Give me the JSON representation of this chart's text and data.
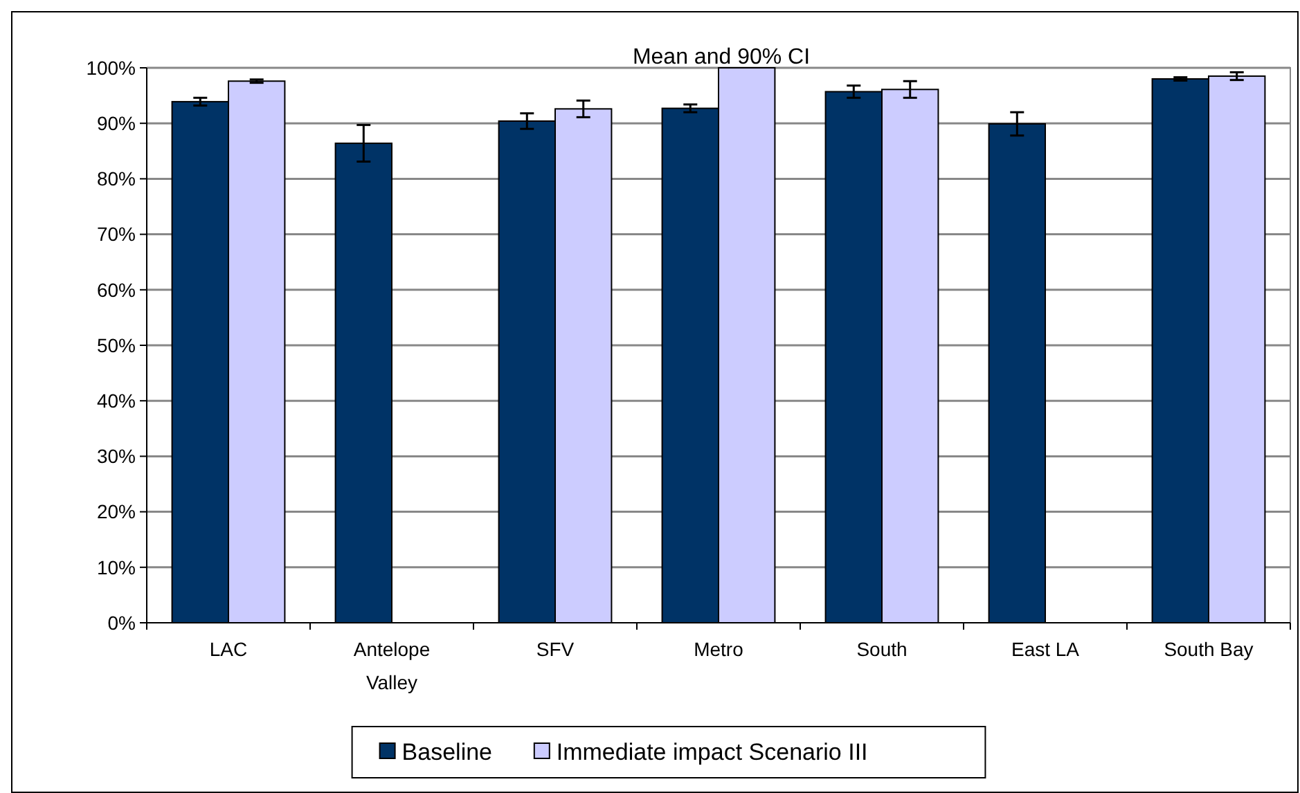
{
  "chart_data": {
    "type": "bar",
    "title": "Mean and 90% CI",
    "categories": [
      "LAC",
      "Antelope Valley",
      "SFV",
      "Metro",
      "South",
      "East LA",
      "South Bay"
    ],
    "series": [
      {
        "name": "Baseline",
        "color": "#003366",
        "values": [
          93.9,
          86.4,
          90.4,
          92.7,
          95.7,
          89.9,
          98.0
        ],
        "errors": [
          0.7,
          3.3,
          1.4,
          0.7,
          1.1,
          2.1,
          0.3
        ]
      },
      {
        "name": "Immediate impact Scenario III",
        "color": "#ccccff",
        "values": [
          97.6,
          0,
          92.6,
          100,
          96.1,
          0,
          98.5
        ],
        "errors": [
          0.3,
          null,
          1.5,
          null,
          1.5,
          null,
          0.7
        ]
      }
    ],
    "ylim": [
      0,
      100
    ],
    "yticks": [
      {
        "value": 0,
        "label": "0%"
      },
      {
        "value": 10,
        "label": "10%"
      },
      {
        "value": 20,
        "label": "20%"
      },
      {
        "value": 30,
        "label": "30%"
      },
      {
        "value": 40,
        "label": "40%"
      },
      {
        "value": 50,
        "label": "50%"
      },
      {
        "value": 60,
        "label": "60%"
      },
      {
        "value": 70,
        "label": "70%"
      },
      {
        "value": 80,
        "label": "80%"
      },
      {
        "value": 90,
        "label": "90%"
      },
      {
        "value": 100,
        "label": "100%"
      }
    ],
    "grid": "y",
    "legend": "bottom"
  }
}
